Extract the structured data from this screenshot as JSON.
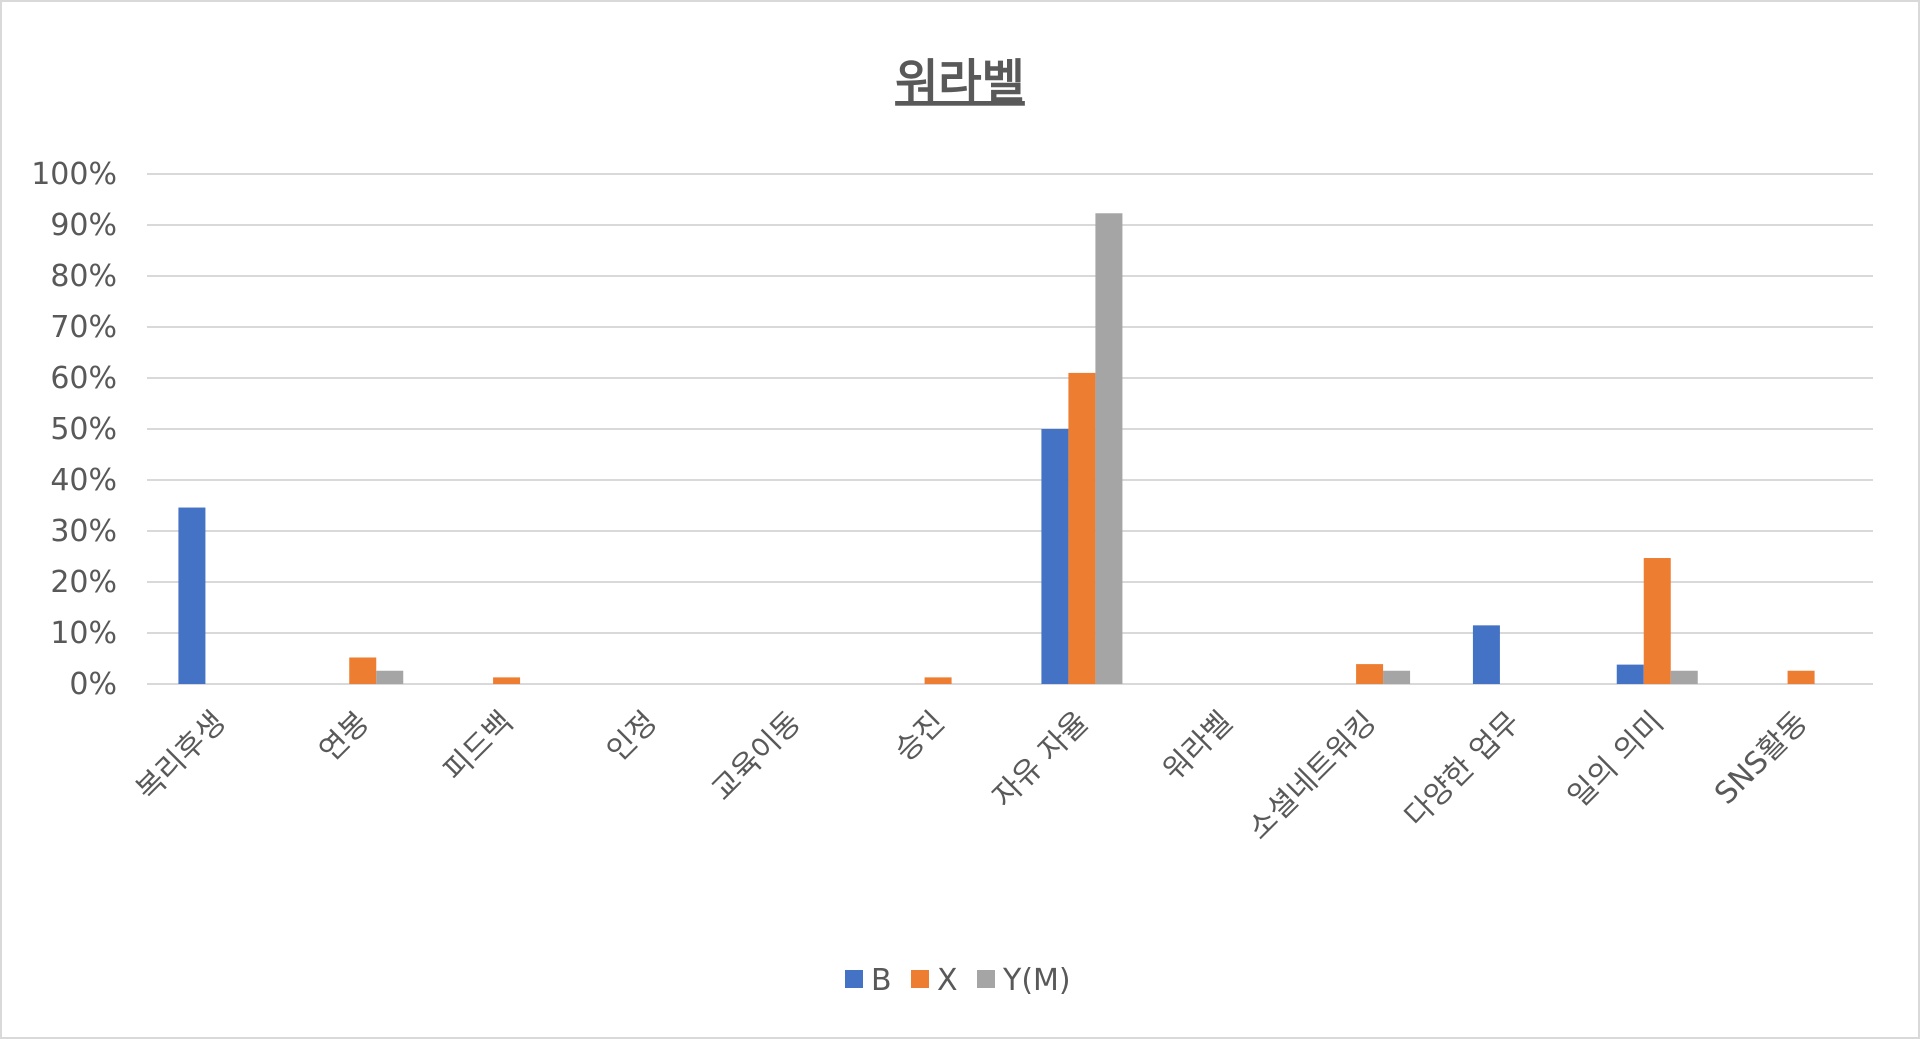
{
  "chart_data": {
    "type": "bar",
    "title": "워라벨",
    "xlabel": "",
    "ylabel": "",
    "ylim": [
      0,
      100
    ],
    "y_ticks": [
      "0%",
      "10%",
      "20%",
      "30%",
      "40%",
      "50%",
      "60%",
      "70%",
      "80%",
      "90%",
      "100%"
    ],
    "y_tick_values": [
      0,
      10,
      20,
      30,
      40,
      50,
      60,
      70,
      80,
      90,
      100
    ],
    "grid": true,
    "legend_position": "bottom",
    "categories": [
      "복리후생",
      "연봉",
      "피드백",
      "인정",
      "교육이동",
      "승진",
      "자유 자율",
      "워라벨",
      "소셜네트워킹",
      "다양한 업무",
      "일의 의미",
      "SNS활동"
    ],
    "series": [
      {
        "name": "B",
        "color": "#4472c4",
        "values": [
          34.6,
          0,
          0,
          0,
          0,
          0,
          50,
          0,
          0,
          11.5,
          3.8,
          0
        ]
      },
      {
        "name": "X",
        "color": "#ed7d31",
        "values": [
          0,
          5.2,
          1.3,
          0,
          0,
          1.3,
          61,
          0,
          3.9,
          0,
          24.7,
          2.6
        ]
      },
      {
        "name": "Y(M)",
        "color": "#a5a5a5",
        "values": [
          0,
          2.6,
          0,
          0,
          0,
          0,
          92.3,
          0,
          2.6,
          0,
          2.6,
          0
        ]
      }
    ]
  }
}
